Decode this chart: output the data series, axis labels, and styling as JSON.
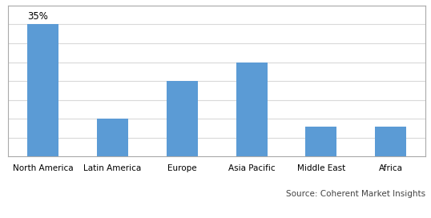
{
  "categories": [
    "North America",
    "Latin America",
    "Europe",
    "Asia Pacific",
    "Middle East",
    "Africa"
  ],
  "values": [
    35,
    10,
    20,
    25,
    8,
    8
  ],
  "bar_color": "#5b9bd5",
  "annotation_label": "35%",
  "annotation_index": 0,
  "ylim": [
    0,
    40
  ],
  "ytick_values": [
    0,
    5,
    10,
    15,
    20,
    25,
    30,
    35,
    40
  ],
  "source_text": "Source: Coherent Market Insights",
  "background_color": "#ffffff",
  "grid_color": "#d9d9d9",
  "bar_width": 0.45,
  "annotation_fontsize": 8.5,
  "xlabel_fontsize": 7.5,
  "source_fontsize": 7.5,
  "border_color": "#aaaaaa"
}
